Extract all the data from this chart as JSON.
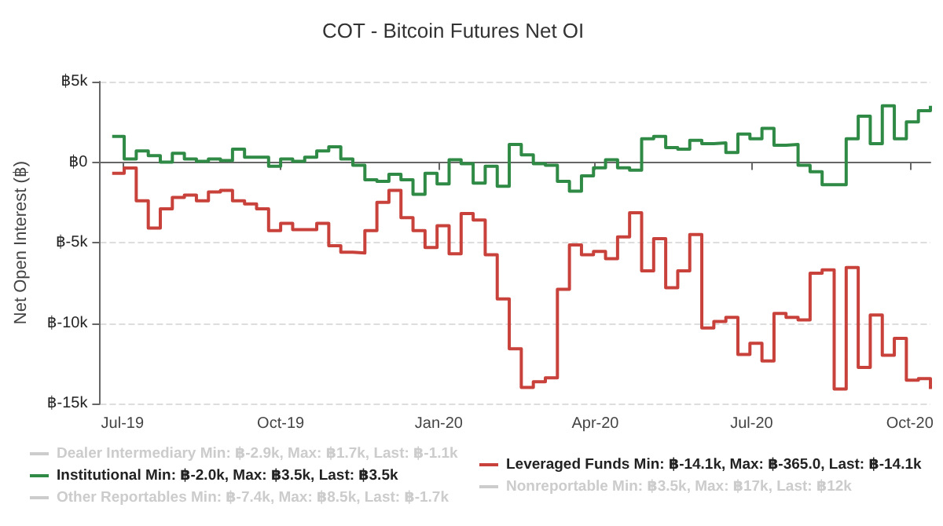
{
  "chart_data": {
    "type": "step",
    "title": "COT - Bitcoin Futures Net OI",
    "ylabel": "Net Open Interest (฿)",
    "x": [
      "2019-06-25",
      "2019-07-02",
      "2019-07-09",
      "2019-07-16",
      "2019-07-23",
      "2019-07-30",
      "2019-08-06",
      "2019-08-13",
      "2019-08-20",
      "2019-08-27",
      "2019-09-03",
      "2019-09-10",
      "2019-09-17",
      "2019-09-24",
      "2019-10-01",
      "2019-10-08",
      "2019-10-15",
      "2019-10-22",
      "2019-10-29",
      "2019-11-05",
      "2019-11-12",
      "2019-11-19",
      "2019-11-26",
      "2019-12-03",
      "2019-12-10",
      "2019-12-17",
      "2019-12-24",
      "2019-12-31",
      "2020-01-07",
      "2020-01-14",
      "2020-01-21",
      "2020-01-28",
      "2020-02-04",
      "2020-02-11",
      "2020-02-18",
      "2020-02-25",
      "2020-03-03",
      "2020-03-10",
      "2020-03-17",
      "2020-03-24",
      "2020-03-31",
      "2020-04-07",
      "2020-04-14",
      "2020-04-21",
      "2020-04-28",
      "2020-05-05",
      "2020-05-12",
      "2020-05-19",
      "2020-05-26",
      "2020-06-02",
      "2020-06-09",
      "2020-06-16",
      "2020-06-23",
      "2020-06-30",
      "2020-07-07",
      "2020-07-14",
      "2020-07-21",
      "2020-07-28",
      "2020-08-04",
      "2020-08-11",
      "2020-08-18",
      "2020-08-25",
      "2020-09-01",
      "2020-09-08",
      "2020-09-15",
      "2020-09-22",
      "2020-09-29",
      "2020-10-06",
      "2020-10-13"
    ],
    "series": [
      {
        "name": "Dealer Intermediary Min: ฿-2.9k, Max: ฿1.7k, Last: ฿-1.1k",
        "color": "#cccccc",
        "values": [
          null,
          null,
          null,
          null,
          null,
          null,
          null,
          null,
          null,
          null,
          null,
          null,
          null,
          null,
          null,
          null,
          null,
          null,
          null,
          null,
          null,
          null,
          null,
          null,
          null,
          null,
          null,
          null,
          null,
          null,
          null,
          null,
          null,
          null,
          null,
          null,
          null,
          null,
          null,
          null,
          null,
          null,
          null,
          null,
          null,
          null,
          null,
          null,
          null,
          null,
          null,
          null,
          null,
          null,
          null,
          null,
          null,
          null,
          null,
          null,
          null,
          null,
          null,
          null,
          null,
          null,
          null,
          null,
          null
        ]
      },
      {
        "name": "Leveraged Funds Min: ฿-14.1k, Max: ฿-365.0, Last: ฿-14.1k",
        "color": "#c8413b",
        "values": [
          -700,
          -365,
          -2400,
          -4100,
          -2900,
          -2200,
          -2050,
          -2400,
          -1850,
          -1750,
          -2400,
          -2600,
          -2900,
          -4250,
          -3800,
          -4200,
          -4200,
          -3800,
          -5200,
          -5600,
          -5650,
          -4250,
          -2500,
          -1750,
          -3450,
          -4250,
          -5300,
          -3950,
          -5700,
          -3200,
          -3600,
          -5750,
          -8500,
          -11600,
          -14000,
          -13650,
          -13400,
          -7900,
          -5150,
          -5750,
          -5550,
          -6000,
          -4650,
          -3150,
          -6750,
          -4750,
          -7800,
          -6750,
          -4500,
          -10300,
          -9900,
          -9650,
          -11950,
          -11250,
          -12350,
          -9400,
          -9650,
          -9800,
          -6900,
          -6700,
          -14100,
          -6550,
          -12750,
          -9500,
          -12000,
          -10950,
          -13550,
          -13450,
          -14100
        ]
      },
      {
        "name": "Institutional Min: ฿-2.0k, Max: ฿3.5k, Last: ฿3.5k",
        "color": "#2f8a45",
        "values": [
          1600,
          200,
          700,
          400,
          0,
          550,
          200,
          50,
          200,
          100,
          800,
          300,
          300,
          -250,
          200,
          50,
          300,
          700,
          950,
          200,
          -200,
          -1100,
          -1200,
          -750,
          -1100,
          -2000,
          -700,
          -1350,
          150,
          -100,
          -1300,
          -250,
          -1500,
          1100,
          450,
          -100,
          -200,
          -1200,
          -1800,
          -850,
          -350,
          150,
          -350,
          -500,
          1450,
          1600,
          900,
          800,
          1350,
          1150,
          1200,
          600,
          1750,
          1450,
          2100,
          1050,
          1100,
          -200,
          -600,
          -1400,
          -1400,
          1450,
          2850,
          1150,
          3500,
          1450,
          2500,
          3200,
          3500
        ]
      },
      {
        "name": "Nonreportable Min: ฿3.5k, Max: ฿17k, Last: ฿12k",
        "color": "#cccccc",
        "values": [
          null,
          null,
          null,
          null,
          null,
          null,
          null,
          null,
          null,
          null,
          null,
          null,
          null,
          null,
          null,
          null,
          null,
          null,
          null,
          null,
          null,
          null,
          null,
          null,
          null,
          null,
          null,
          null,
          null,
          null,
          null,
          null,
          null,
          null,
          null,
          null,
          null,
          null,
          null,
          null,
          null,
          null,
          null,
          null,
          null,
          null,
          null,
          null,
          null,
          null,
          null,
          null,
          null,
          null,
          null,
          null,
          null,
          null,
          null,
          null,
          null,
          null,
          null,
          null,
          null,
          null,
          null,
          null,
          null
        ]
      },
      {
        "name": "Other Reportables Min: ฿-7.4k, Max: ฿8.5k, Last: ฿-1.7k",
        "color": "#cccccc",
        "values": [
          null,
          null,
          null,
          null,
          null,
          null,
          null,
          null,
          null,
          null,
          null,
          null,
          null,
          null,
          null,
          null,
          null,
          null,
          null,
          null,
          null,
          null,
          null,
          null,
          null,
          null,
          null,
          null,
          null,
          null,
          null,
          null,
          null,
          null,
          null,
          null,
          null,
          null,
          null,
          null,
          null,
          null,
          null,
          null,
          null,
          null,
          null,
          null,
          null,
          null,
          null,
          null,
          null,
          null,
          null,
          null,
          null,
          null,
          null,
          null,
          null,
          null,
          null,
          null,
          null,
          null,
          null,
          null,
          null
        ]
      }
    ],
    "xlim": [
      "2019-06-18",
      "2020-10-13"
    ],
    "xticks": [
      {
        "value": "2019-07-01",
        "label": "Jul-19"
      },
      {
        "value": "2019-10-01",
        "label": "Oct-19"
      },
      {
        "value": "2020-01-01",
        "label": "Jan-20"
      },
      {
        "value": "2020-04-01",
        "label": "Apr-20"
      },
      {
        "value": "2020-07-01",
        "label": "Jul-20"
      },
      {
        "value": "2020-10-01",
        "label": "Oct-20"
      }
    ],
    "ylim": [
      -15000,
      5000
    ],
    "yticks": [
      {
        "value": -15000,
        "label": "฿-15k"
      },
      {
        "value": -10000,
        "label": "฿-10k"
      },
      {
        "value": -5000,
        "label": "฿-5k"
      },
      {
        "value": 0,
        "label": "฿0"
      },
      {
        "value": 5000,
        "label": "฿5k"
      }
    ],
    "grid": "y",
    "legend": "bottom"
  }
}
